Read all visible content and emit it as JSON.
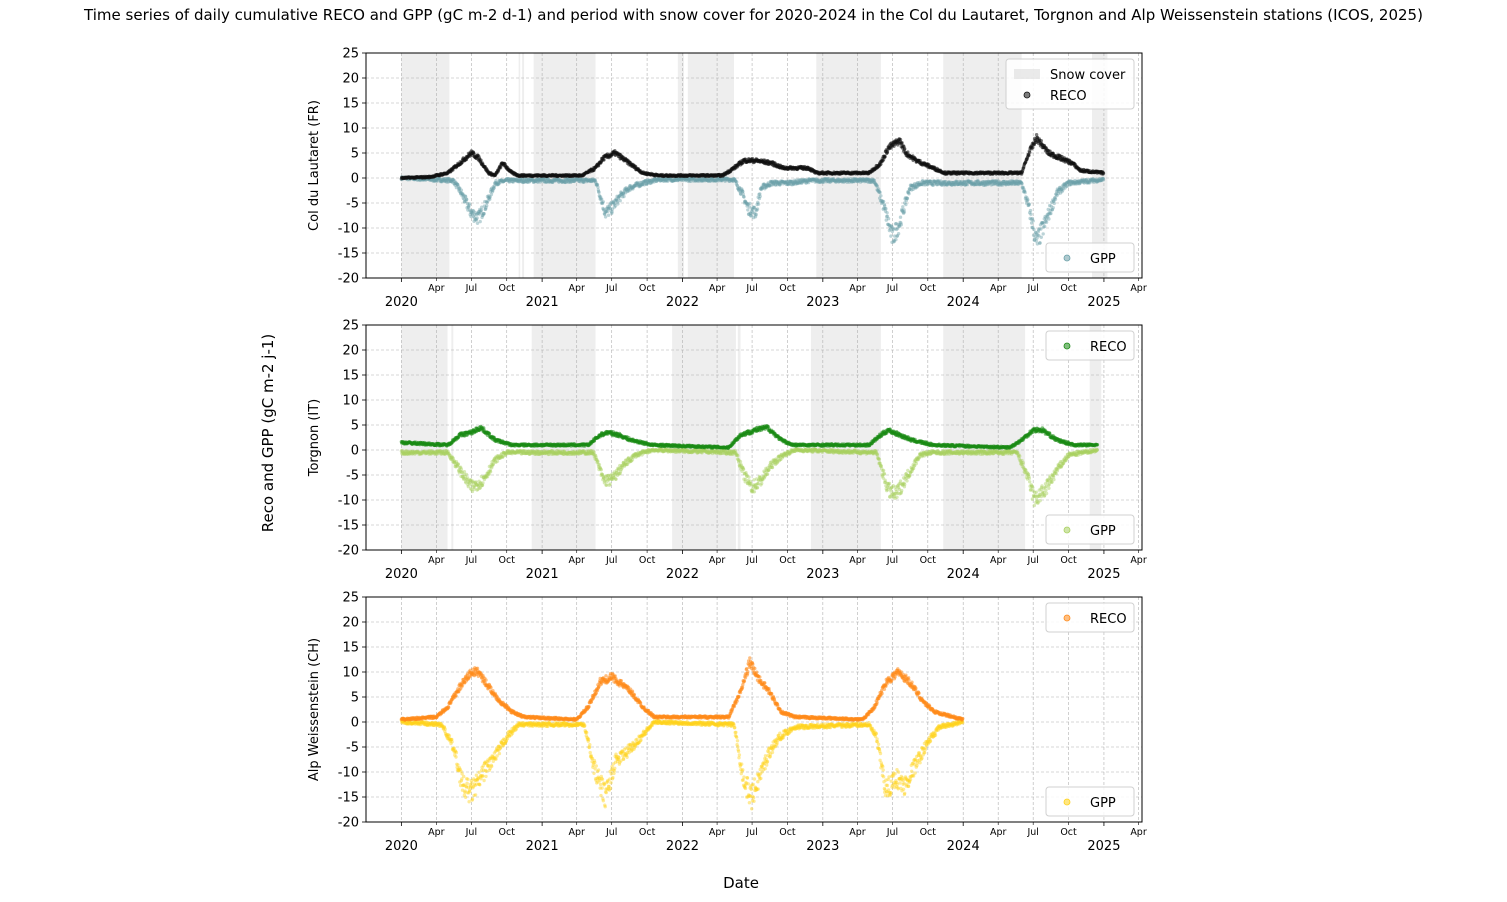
{
  "figure": {
    "title": "Time series of daily cumulative RECO and GPP (gC m-2 d-1) and period with snow cover for 2020-2024 in the Col du Lautaret, Torgnon and Alp Weissenstein stations (ICOS, 2025)",
    "ylabel": "Reco and GPP (gC m-2 j-1)",
    "xlabel": "Date"
  },
  "chart_data": [
    {
      "type": "scatter",
      "station": "Col du Lautaret (FR)",
      "ylabel": "Col du Lautaret (FR)",
      "ylim": [
        -20,
        25
      ],
      "yticks": [
        -20,
        -15,
        -10,
        -5,
        0,
        5,
        10,
        15,
        20,
        25
      ],
      "xlim": [
        "2019-10-01",
        "2025-04-10"
      ],
      "year_ticks": [
        "2020",
        "2021",
        "2022",
        "2023",
        "2024",
        "2025"
      ],
      "month_ticks": [
        "Apr",
        "Jul",
        "Oct"
      ],
      "grid": true,
      "colors": {
        "reco": "#111111",
        "gpp": "#6b9fa8",
        "snow": "#d9d9d9"
      },
      "legend_top": [
        {
          "label": "Snow cover",
          "kind": "patch"
        },
        {
          "label": "RECO",
          "kind": "dot"
        }
      ],
      "legend_bottom": [
        {
          "label": "GPP",
          "kind": "dot"
        }
      ],
      "legend_top_position": "upper right",
      "legend_bottom_position": "lower right",
      "snow_periods": [
        [
          "2020-01-01",
          "2020-05-05"
        ],
        [
          "2020-11-01",
          "2020-11-05"
        ],
        [
          "2020-11-10",
          "2020-11-15"
        ],
        [
          "2020-12-10",
          "2021-05-20"
        ],
        [
          "2021-12-20",
          "2022-01-05"
        ],
        [
          "2022-01-15",
          "2022-05-15"
        ],
        [
          "2022-12-15",
          "2023-06-01"
        ],
        [
          "2023-11-10",
          "2024-06-01"
        ],
        [
          "2024-12-01",
          "2025-01-10"
        ]
      ],
      "reco": {
        "start": "2020-01-01",
        "end": "2024-12-31",
        "points": [
          [
            "2020-01-01",
            0
          ],
          [
            "2020-03-15",
            0.2
          ],
          [
            "2020-05-01",
            1
          ],
          [
            "2020-06-01",
            3
          ],
          [
            "2020-07-01",
            5
          ],
          [
            "2020-07-20",
            4
          ],
          [
            "2020-08-15",
            1
          ],
          [
            "2020-09-01",
            0.5
          ],
          [
            "2020-09-20",
            3
          ],
          [
            "2020-10-15",
            1
          ],
          [
            "2020-11-01",
            0.5
          ],
          [
            "2021-04-15",
            0.5
          ],
          [
            "2021-05-20",
            2
          ],
          [
            "2021-06-10",
            4
          ],
          [
            "2021-07-10",
            5
          ],
          [
            "2021-08-15",
            3
          ],
          [
            "2021-09-20",
            1
          ],
          [
            "2021-11-01",
            0.5
          ],
          [
            "2022-04-15",
            0.5
          ],
          [
            "2022-05-15",
            2
          ],
          [
            "2022-06-10",
            3.5
          ],
          [
            "2022-07-10",
            3.5
          ],
          [
            "2022-08-20",
            3
          ],
          [
            "2022-09-20",
            2
          ],
          [
            "2022-11-01",
            2
          ],
          [
            "2022-11-25",
            2
          ],
          [
            "2022-12-15",
            1
          ],
          [
            "2023-05-01",
            1
          ],
          [
            "2023-06-01",
            3
          ],
          [
            "2023-06-20",
            6
          ],
          [
            "2023-07-20",
            7.5
          ],
          [
            "2023-08-05",
            5
          ],
          [
            "2023-09-01",
            3.5
          ],
          [
            "2023-10-15",
            2
          ],
          [
            "2023-11-15",
            1
          ],
          [
            "2024-06-01",
            1
          ],
          [
            "2024-06-20",
            5
          ],
          [
            "2024-07-10",
            8
          ],
          [
            "2024-08-10",
            5
          ],
          [
            "2024-09-10",
            4
          ],
          [
            "2024-10-10",
            3
          ],
          [
            "2024-11-01",
            1.5
          ],
          [
            "2024-12-31",
            1
          ]
        ]
      },
      "gpp": {
        "start": "2020-01-01",
        "end": "2024-12-31",
        "points": [
          [
            "2020-01-01",
            0
          ],
          [
            "2020-05-15",
            -0.5
          ],
          [
            "2020-06-05",
            -3
          ],
          [
            "2020-07-01",
            -7
          ],
          [
            "2020-07-20",
            -8
          ],
          [
            "2020-08-10",
            -5
          ],
          [
            "2020-09-01",
            -1
          ],
          [
            "2020-10-01",
            -0.5
          ],
          [
            "2021-05-20",
            -0.5
          ],
          [
            "2021-06-15",
            -7
          ],
          [
            "2021-07-01",
            -6
          ],
          [
            "2021-07-20",
            -4
          ],
          [
            "2021-08-15",
            -2
          ],
          [
            "2021-09-20",
            -1
          ],
          [
            "2021-11-01",
            -0.3
          ],
          [
            "2022-05-15",
            -0.3
          ],
          [
            "2022-06-05",
            -3
          ],
          [
            "2022-06-20",
            -6
          ],
          [
            "2022-07-10",
            -7
          ],
          [
            "2022-07-25",
            -2
          ],
          [
            "2022-08-20",
            -1
          ],
          [
            "2022-10-01",
            -1
          ],
          [
            "2022-12-01",
            -0.5
          ],
          [
            "2023-05-15",
            -0.5
          ],
          [
            "2023-06-10",
            -6
          ],
          [
            "2023-07-01",
            -12
          ],
          [
            "2023-07-20",
            -9
          ],
          [
            "2023-08-15",
            -2
          ],
          [
            "2023-09-15",
            -1
          ],
          [
            "2023-11-01",
            -1
          ],
          [
            "2024-06-01",
            -1
          ],
          [
            "2024-06-20",
            -6
          ],
          [
            "2024-07-10",
            -13
          ],
          [
            "2024-08-01",
            -9
          ],
          [
            "2024-09-01",
            -3
          ],
          [
            "2024-10-01",
            -1
          ],
          [
            "2024-12-31",
            -0.3
          ]
        ]
      }
    },
    {
      "type": "scatter",
      "station": "Torgnon (IT)",
      "ylabel": "Torgnon (IT)",
      "ylim": [
        -20,
        25
      ],
      "yticks": [
        -20,
        -15,
        -10,
        -5,
        0,
        5,
        10,
        15,
        20,
        25
      ],
      "xlim": [
        "2019-10-01",
        "2025-04-10"
      ],
      "year_ticks": [
        "2020",
        "2021",
        "2022",
        "2023",
        "2024",
        "2025"
      ],
      "month_ticks": [
        "Apr",
        "Jul",
        "Oct"
      ],
      "grid": true,
      "colors": {
        "reco": "#1a8a14",
        "gpp": "#a8d060",
        "snow": "#d9d9d9"
      },
      "legend_top": [
        {
          "label": "RECO",
          "kind": "dot"
        }
      ],
      "legend_bottom": [
        {
          "label": "GPP",
          "kind": "dot"
        }
      ],
      "legend_top_position": "upper right",
      "legend_bottom_position": "lower right",
      "snow_periods": [
        [
          "2020-01-01",
          "2020-04-30"
        ],
        [
          "2020-05-10",
          "2020-05-15"
        ],
        [
          "2020-12-05",
          "2020-12-20"
        ],
        [
          "2020-12-20",
          "2021-05-20"
        ],
        [
          "2021-12-05",
          "2022-01-01"
        ],
        [
          "2022-01-01",
          "2022-05-20"
        ],
        [
          "2022-05-25",
          "2022-06-01"
        ],
        [
          "2022-12-01",
          "2023-06-01"
        ],
        [
          "2023-11-10",
          "2024-06-10"
        ],
        [
          "2024-11-25",
          "2024-12-25"
        ]
      ],
      "reco": {
        "start": "2020-01-01",
        "end": "2024-12-15",
        "points": [
          [
            "2020-01-01",
            1.5
          ],
          [
            "2020-05-01",
            1
          ],
          [
            "2020-06-01",
            3
          ],
          [
            "2020-07-01",
            3.5
          ],
          [
            "2020-07-25",
            4.5
          ],
          [
            "2020-09-01",
            2
          ],
          [
            "2020-10-15",
            1
          ],
          [
            "2021-05-01",
            1
          ],
          [
            "2021-06-01",
            3
          ],
          [
            "2021-06-20",
            3.5
          ],
          [
            "2021-07-20",
            3
          ],
          [
            "2021-08-20",
            2
          ],
          [
            "2021-10-15",
            1
          ],
          [
            "2022-05-01",
            0.5
          ],
          [
            "2022-06-01",
            3
          ],
          [
            "2022-07-10",
            4
          ],
          [
            "2022-08-10",
            4.5
          ],
          [
            "2022-09-15",
            2
          ],
          [
            "2022-10-15",
            1
          ],
          [
            "2023-05-01",
            1
          ],
          [
            "2023-06-01",
            3
          ],
          [
            "2023-06-20",
            4
          ],
          [
            "2023-07-20",
            3
          ],
          [
            "2023-08-20",
            2
          ],
          [
            "2023-10-15",
            1
          ],
          [
            "2024-05-01",
            0.5
          ],
          [
            "2024-06-01",
            2
          ],
          [
            "2024-07-01",
            4
          ],
          [
            "2024-07-25",
            4
          ],
          [
            "2024-09-01",
            2
          ],
          [
            "2024-10-15",
            1
          ],
          [
            "2024-12-15",
            1
          ]
        ]
      },
      "gpp": {
        "start": "2020-01-01",
        "end": "2024-12-15",
        "points": [
          [
            "2020-01-01",
            -0.5
          ],
          [
            "2020-05-01",
            -0.5
          ],
          [
            "2020-06-01",
            -4
          ],
          [
            "2020-07-01",
            -7.5
          ],
          [
            "2020-08-01",
            -6
          ],
          [
            "2020-09-01",
            -2
          ],
          [
            "2020-10-01",
            -0.5
          ],
          [
            "2021-05-15",
            -0.5
          ],
          [
            "2021-06-10",
            -6
          ],
          [
            "2021-07-01",
            -6
          ],
          [
            "2021-08-01",
            -3
          ],
          [
            "2021-09-01",
            -1
          ],
          [
            "2021-10-15",
            0
          ],
          [
            "2022-05-20",
            -0.5
          ],
          [
            "2022-06-10",
            -5
          ],
          [
            "2022-07-01",
            -7.5
          ],
          [
            "2022-07-25",
            -6
          ],
          [
            "2022-08-20",
            -3
          ],
          [
            "2022-09-20",
            -1
          ],
          [
            "2022-10-20",
            0
          ],
          [
            "2023-05-20",
            -0.5
          ],
          [
            "2023-06-20",
            -8
          ],
          [
            "2023-07-10",
            -9
          ],
          [
            "2023-08-10",
            -5
          ],
          [
            "2023-09-10",
            -1
          ],
          [
            "2023-10-10",
            -0.5
          ],
          [
            "2024-05-20",
            -0.5
          ],
          [
            "2024-06-15",
            -5
          ],
          [
            "2024-07-05",
            -10
          ],
          [
            "2024-08-01",
            -8
          ],
          [
            "2024-09-01",
            -4
          ],
          [
            "2024-10-01",
            -1
          ],
          [
            "2024-12-15",
            0
          ]
        ]
      }
    },
    {
      "type": "scatter",
      "station": "Alp Weissenstein (CH)",
      "ylabel": "Alp Weissenstein (CH)",
      "ylim": [
        -20,
        25
      ],
      "yticks": [
        -20,
        -15,
        -10,
        -5,
        0,
        5,
        10,
        15,
        20,
        25
      ],
      "xlim": [
        "2019-10-01",
        "2025-04-10"
      ],
      "year_ticks": [
        "2020",
        "2021",
        "2022",
        "2023",
        "2024",
        "2025"
      ],
      "month_ticks": [
        "Apr",
        "Jul",
        "Oct"
      ],
      "grid": true,
      "colors": {
        "reco": "#ff8a1a",
        "gpp": "#ffd21a",
        "snow": "#d9d9d9"
      },
      "legend_top": [
        {
          "label": "RECO",
          "kind": "dot"
        }
      ],
      "legend_bottom": [
        {
          "label": "GPP",
          "kind": "dot"
        }
      ],
      "legend_top_position": "upper right",
      "legend_bottom_position": "lower right",
      "snow_periods": [],
      "reco": {
        "start": "2020-01-01",
        "end": "2023-12-31",
        "points": [
          [
            "2020-01-01",
            0.5
          ],
          [
            "2020-04-01",
            1
          ],
          [
            "2020-05-01",
            3
          ],
          [
            "2020-06-01",
            7
          ],
          [
            "2020-07-01",
            10
          ],
          [
            "2020-07-20",
            10
          ],
          [
            "2020-08-15",
            7
          ],
          [
            "2020-09-15",
            4
          ],
          [
            "2020-10-15",
            2
          ],
          [
            "2020-11-15",
            1
          ],
          [
            "2021-04-01",
            0.5
          ],
          [
            "2021-05-01",
            3
          ],
          [
            "2021-06-01",
            8
          ],
          [
            "2021-07-01",
            9
          ],
          [
            "2021-07-20",
            8
          ],
          [
            "2021-08-20",
            6
          ],
          [
            "2021-09-20",
            3
          ],
          [
            "2021-10-20",
            1
          ],
          [
            "2022-05-01",
            1
          ],
          [
            "2022-06-01",
            6
          ],
          [
            "2022-06-25",
            12
          ],
          [
            "2022-07-15",
            9
          ],
          [
            "2022-08-15",
            6
          ],
          [
            "2022-09-15",
            2
          ],
          [
            "2022-10-20",
            1
          ],
          [
            "2023-04-15",
            0.5
          ],
          [
            "2023-05-15",
            3
          ],
          [
            "2023-06-15",
            8
          ],
          [
            "2023-07-15",
            10
          ],
          [
            "2023-08-15",
            8
          ],
          [
            "2023-09-20",
            4
          ],
          [
            "2023-10-20",
            2
          ],
          [
            "2023-12-31",
            0.5
          ]
        ]
      },
      "gpp": {
        "start": "2020-01-01",
        "end": "2023-12-31",
        "points": [
          [
            "2020-01-01",
            0
          ],
          [
            "2020-04-15",
            -0.5
          ],
          [
            "2020-05-15",
            -5
          ],
          [
            "2020-06-10",
            -13
          ],
          [
            "2020-06-30",
            -14
          ],
          [
            "2020-07-20",
            -12
          ],
          [
            "2020-08-10",
            -9
          ],
          [
            "2020-09-01",
            -7
          ],
          [
            "2020-10-01",
            -3
          ],
          [
            "2020-11-01",
            -0.5
          ],
          [
            "2021-04-20",
            -0.5
          ],
          [
            "2021-05-20",
            -10
          ],
          [
            "2021-06-15",
            -15
          ],
          [
            "2021-07-10",
            -8
          ],
          [
            "2021-08-10",
            -6
          ],
          [
            "2021-09-15",
            -3
          ],
          [
            "2021-10-20",
            0
          ],
          [
            "2022-05-15",
            -0.5
          ],
          [
            "2022-06-10",
            -12
          ],
          [
            "2022-06-30",
            -15
          ],
          [
            "2022-07-20",
            -11
          ],
          [
            "2022-08-15",
            -6
          ],
          [
            "2022-09-10",
            -3
          ],
          [
            "2022-10-20",
            -1
          ],
          [
            "2023-05-01",
            -0.5
          ],
          [
            "2023-05-20",
            -3
          ],
          [
            "2023-06-15",
            -14
          ],
          [
            "2023-07-10",
            -11
          ],
          [
            "2023-08-01",
            -13
          ],
          [
            "2023-08-20",
            -10
          ],
          [
            "2023-09-10",
            -7
          ],
          [
            "2023-10-01",
            -4
          ],
          [
            "2023-11-01",
            -1
          ],
          [
            "2023-12-31",
            0
          ]
        ]
      }
    }
  ]
}
